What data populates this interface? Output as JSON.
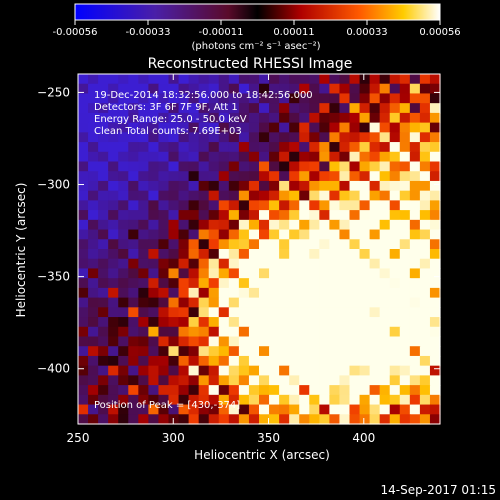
{
  "colorbar": {
    "ticks": [
      "-0.00056",
      "-0.00033",
      "-0.00011",
      "0.00011",
      "0.00033",
      "0.00056"
    ],
    "units": "(photons cm⁻² s⁻¹ asec⁻²)"
  },
  "chart_data": {
    "type": "heatmap",
    "title": "Reconstructed RHESSI Image",
    "xlabel": "Heliocentric X (arcsec)",
    "ylabel": "Heliocentric Y (arcsec)",
    "xlim": [
      250,
      440
    ],
    "ylim": [
      -430,
      -240
    ],
    "xticks": [
      250,
      300,
      350,
      400
    ],
    "yticks": [
      -250,
      -300,
      -350,
      -400
    ],
    "colormap": "blue-purple-red-yellow-white",
    "color_range": [
      -0.00056,
      0.00056
    ],
    "grid": false,
    "annotations": [
      "19-Dec-2014 18:32:56.000 to 18:42:56.000",
      "Detectors: 3F 6F 7F 9F, Att 1",
      "Energy Range: 25.0 - 50.0 keV",
      "Clean     Total counts: 7.69E+03"
    ],
    "peak_label": "Position of Peak = [430,-374]",
    "peak": [
      430,
      -374
    ],
    "sources": [
      {
        "x": 350,
        "y": -345,
        "intensity": 0.00056
      },
      {
        "x": 365,
        "y": -395,
        "intensity": 0.00045
      },
      {
        "x": 430,
        "y": -374,
        "intensity": 0.00056
      },
      {
        "x": 425,
        "y": -290,
        "intensity": 0.0004
      }
    ]
  },
  "footer": {
    "timestamp": "14-Sep-2017 01:15"
  }
}
